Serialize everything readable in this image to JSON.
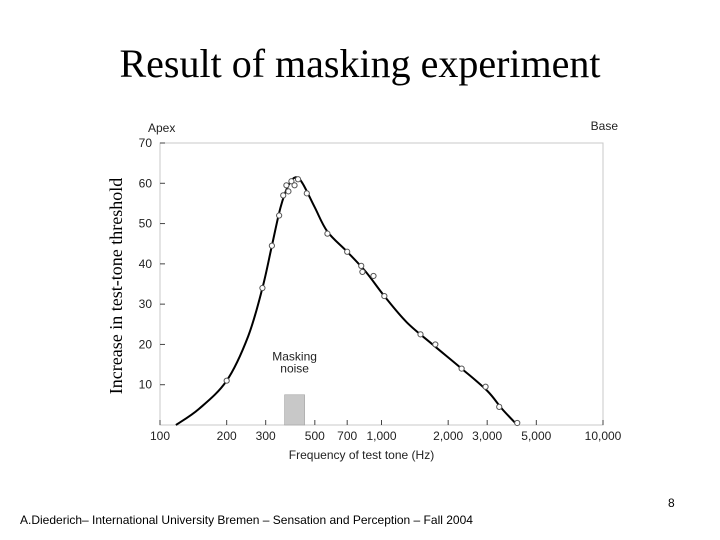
{
  "slide": {
    "title": "Result of masking experiment",
    "side_label": "Increase in test-tone threshold",
    "footer": "A.Diederich– International University Bremen – Sensation and Perception – Fall 2004",
    "page_number": "8"
  },
  "chart_data": {
    "type": "scatter",
    "title": "",
    "xlabel": "Frequency of test tone (Hz)",
    "ylabel": "",
    "x_scale": "log",
    "xlim": [
      100,
      10000
    ],
    "ylim": [
      0,
      70
    ],
    "x_ticks": [
      {
        "value": 100,
        "label": "100"
      },
      {
        "value": 200,
        "label": "200"
      },
      {
        "value": 300,
        "label": "300"
      },
      {
        "value": 500,
        "label": "500"
      },
      {
        "value": 700,
        "label": "700"
      },
      {
        "value": 1000,
        "label": "1,000"
      },
      {
        "value": 2000,
        "label": "2,000"
      },
      {
        "value": 3000,
        "label": "3,000"
      },
      {
        "value": 5000,
        "label": "5,000"
      },
      {
        "value": 10000,
        "label": "10,000"
      }
    ],
    "y_ticks": [
      10,
      20,
      30,
      40,
      50,
      60,
      70
    ],
    "corner_labels": {
      "left": "Apex",
      "right": "Base"
    },
    "masking_noise": {
      "label_line1": "Masking",
      "label_line2": "noise",
      "range": [
        365,
        450
      ],
      "color": "#c8c8c8"
    },
    "points": [
      {
        "x": 200,
        "y": 11
      },
      {
        "x": 290,
        "y": 34
      },
      {
        "x": 320,
        "y": 44.5
      },
      {
        "x": 345,
        "y": 52
      },
      {
        "x": 360,
        "y": 57
      },
      {
        "x": 372,
        "y": 59.5
      },
      {
        "x": 380,
        "y": 58
      },
      {
        "x": 392,
        "y": 60.5
      },
      {
        "x": 405,
        "y": 59.5
      },
      {
        "x": 420,
        "y": 61
      },
      {
        "x": 460,
        "y": 57.5
      },
      {
        "x": 570,
        "y": 47.5
      },
      {
        "x": 700,
        "y": 43
      },
      {
        "x": 810,
        "y": 39.5
      },
      {
        "x": 820,
        "y": 38
      },
      {
        "x": 920,
        "y": 37
      },
      {
        "x": 1030,
        "y": 32
      },
      {
        "x": 1500,
        "y": 22.5
      },
      {
        "x": 1750,
        "y": 20
      },
      {
        "x": 2300,
        "y": 14
      },
      {
        "x": 2950,
        "y": 9.5
      },
      {
        "x": 3400,
        "y": 4.5
      },
      {
        "x": 4100,
        "y": 0.5
      }
    ],
    "curve": [
      {
        "x": 118,
        "y": 0
      },
      {
        "x": 150,
        "y": 4
      },
      {
        "x": 200,
        "y": 11
      },
      {
        "x": 250,
        "y": 22
      },
      {
        "x": 290,
        "y": 34
      },
      {
        "x": 320,
        "y": 44.5
      },
      {
        "x": 350,
        "y": 54
      },
      {
        "x": 380,
        "y": 59.5
      },
      {
        "x": 410,
        "y": 61.5
      },
      {
        "x": 440,
        "y": 60
      },
      {
        "x": 500,
        "y": 54
      },
      {
        "x": 570,
        "y": 48
      },
      {
        "x": 700,
        "y": 43
      },
      {
        "x": 850,
        "y": 38
      },
      {
        "x": 1030,
        "y": 32
      },
      {
        "x": 1300,
        "y": 25.5
      },
      {
        "x": 1700,
        "y": 20
      },
      {
        "x": 2300,
        "y": 14
      },
      {
        "x": 3000,
        "y": 8.5
      },
      {
        "x": 3500,
        "y": 4
      },
      {
        "x": 4100,
        "y": 0
      }
    ],
    "colors": {
      "grid": "#c8c8c8",
      "line": "#000000",
      "marker": "#555555"
    }
  }
}
